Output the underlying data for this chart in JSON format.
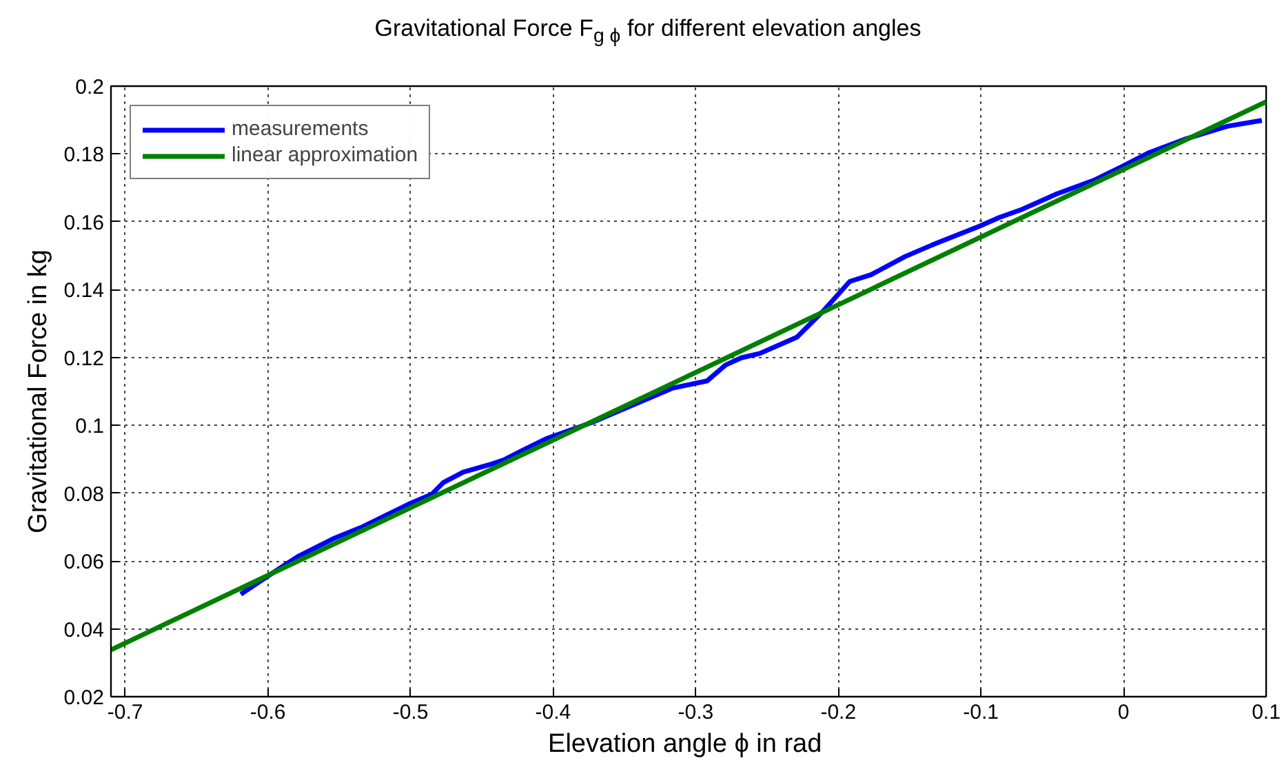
{
  "chart_data": {
    "type": "line",
    "title": "Gravitational Force F$_{g ϕ}$ for different elevation angles",
    "xlabel": "Elevation angle ϕ  in rad",
    "ylabel": "Gravitational Force in kg",
    "xlim": [
      -0.71,
      0.1
    ],
    "xticks": [
      -0.7,
      -0.6,
      -0.5,
      -0.4,
      -0.3,
      -0.2,
      -0.1,
      0,
      0.1
    ],
    "ylim": [
      0.02,
      0.2
    ],
    "yticks": [
      0.02,
      0.04,
      0.06,
      0.08,
      0.1,
      0.12,
      0.14,
      0.16,
      0.18,
      0.2
    ],
    "grid": true,
    "legend": "top left",
    "line_style": "solid",
    "series": [
      {
        "name": "measurements",
        "color": "#0000ff",
        "x": [
          -0.619,
          -0.602,
          -0.579,
          -0.553,
          -0.534,
          -0.5,
          -0.485,
          -0.477,
          -0.463,
          -0.443,
          -0.434,
          -0.421,
          -0.405,
          -0.373,
          -0.331,
          -0.316,
          -0.292,
          -0.279,
          -0.268,
          -0.255,
          -0.229,
          -0.211,
          -0.192,
          -0.177,
          -0.153,
          -0.134,
          -0.101,
          -0.087,
          -0.071,
          -0.047,
          -0.021,
          -0.001,
          0.018,
          0.044,
          0.073,
          0.097
        ],
        "values": [
          0.0502,
          0.055,
          0.0613,
          0.0668,
          0.07,
          0.077,
          0.0797,
          0.0831,
          0.0862,
          0.0886,
          0.0899,
          0.0927,
          0.096,
          0.1008,
          0.1083,
          0.111,
          0.1131,
          0.1178,
          0.1199,
          0.1212,
          0.126,
          0.1335,
          0.1424,
          0.1444,
          0.1498,
          0.1532,
          0.1587,
          0.1613,
          0.1637,
          0.1682,
          0.1722,
          0.1763,
          0.1804,
          0.1845,
          0.1882,
          0.1899
        ]
      },
      {
        "name": "linear approximation",
        "color": "#008000",
        "x": [
          -0.71,
          0.1
        ],
        "values": [
          0.0338,
          0.1954
        ]
      }
    ]
  }
}
